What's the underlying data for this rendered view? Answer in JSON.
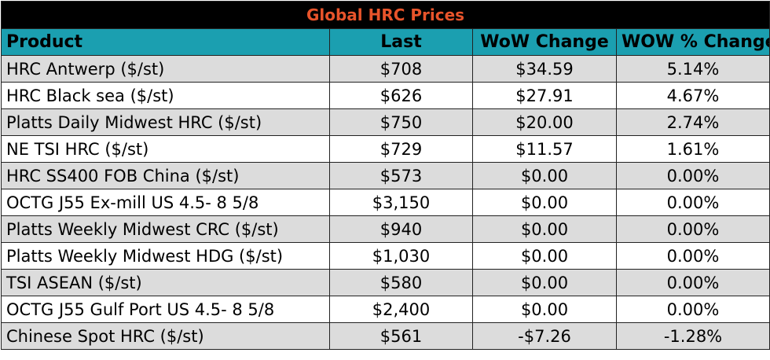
{
  "title": "Global HRC Prices",
  "columns": [
    "Product",
    "Last",
    "WoW Change",
    "WOW % Change"
  ],
  "rows": [
    {
      "product": "HRC Antwerp ($/st)",
      "last": "$708",
      "wow_change": "$34.59",
      "wow_pct": "5.14%"
    },
    {
      "product": "HRC Black sea ($/st)",
      "last": "$626",
      "wow_change": "$27.91",
      "wow_pct": "4.67%"
    },
    {
      "product": "Platts Daily Midwest HRC ($/st)",
      "last": "$750",
      "wow_change": "$20.00",
      "wow_pct": "2.74%"
    },
    {
      "product": "NE TSI HRC ($/st)",
      "last": "$729",
      "wow_change": "$11.57",
      "wow_pct": "1.61%"
    },
    {
      "product": "HRC SS400 FOB China ($/st)",
      "last": "$573",
      "wow_change": "$0.00",
      "wow_pct": "0.00%"
    },
    {
      "product": "OCTG J55 Ex-mill US 4.5- 8 5/8",
      "last": "$3,150",
      "wow_change": "$0.00",
      "wow_pct": "0.00%"
    },
    {
      "product": "Platts Weekly Midwest CRC ($/st)",
      "last": "$940",
      "wow_change": "$0.00",
      "wow_pct": "0.00%"
    },
    {
      "product": "Platts Weekly Midwest HDG ($/st)",
      "last": "$1,030",
      "wow_change": "$0.00",
      "wow_pct": "0.00%"
    },
    {
      "product": "TSI ASEAN ($/st)",
      "last": "$580",
      "wow_change": "$0.00",
      "wow_pct": "0.00%"
    },
    {
      "product": "OCTG J55 Gulf Port US 4.5- 8 5/8",
      "last": "$2,400",
      "wow_change": "$0.00",
      "wow_pct": "0.00%"
    },
    {
      "product": "Chinese Spot HRC ($/st)",
      "last": "$561",
      "wow_change": "-$7.26",
      "wow_pct": "-1.28%"
    }
  ],
  "colors": {
    "title_bg": "#000000",
    "title_text": "#e8542b",
    "header_bg": "#1b9fb0",
    "stripe_bg": "#dcdcdc"
  }
}
